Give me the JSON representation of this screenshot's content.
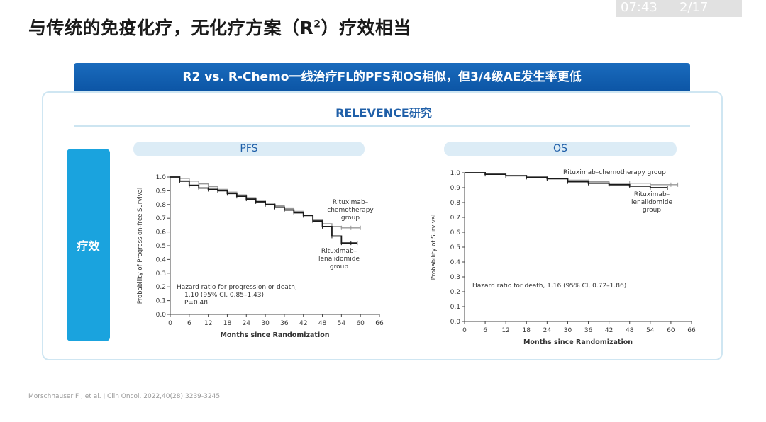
{
  "slide": {
    "title_main": "与传统的免疫化疗，无化疗方案（R",
    "title_sup": "2",
    "title_end": "）疗效相当"
  },
  "overlay": {
    "time": "07:43",
    "page": "2/17"
  },
  "banner": {
    "text": "R2 vs. R-Chemo一线治疗FL的PFS和OS相似，但3/4级AE发生率更低"
  },
  "study": {
    "name": "RELEVENCE研究"
  },
  "side": {
    "label": "疗效"
  },
  "colors": {
    "banner": "#1264b5",
    "side": "#1aa3de",
    "pill": "#dcecf6",
    "accent_text": "#1f5fa8"
  },
  "footnote": "Morschhauser F , et al. J Clin Oncol. 2022,40(28):3239-3245",
  "chart_data": [
    {
      "type": "line",
      "panel_label": "PFS",
      "ylabel": "Probability of Progression-free Survival",
      "xlabel": "Months since Randomization",
      "xlim": [
        0,
        66
      ],
      "ylim": [
        0.0,
        1.0
      ],
      "x_ticks": [
        "0",
        "6",
        "12",
        "18",
        "24",
        "30",
        "36",
        "42",
        "48",
        "54",
        "60",
        "66"
      ],
      "y_ticks": [
        "0.0",
        "0.1",
        "0.2",
        "0.3",
        "0.4",
        "0.5",
        "0.6",
        "0.7",
        "0.8",
        "0.9",
        "1.0"
      ],
      "series": [
        {
          "name": "Rituximab–chemotherapy group",
          "label_lines": [
            "Rituximab–",
            "chemotherapy",
            "group"
          ],
          "x": [
            0,
            3,
            6,
            9,
            12,
            15,
            18,
            21,
            24,
            27,
            30,
            33,
            36,
            39,
            42,
            45,
            48,
            51,
            54,
            57,
            60
          ],
          "y": [
            1.0,
            0.99,
            0.97,
            0.95,
            0.93,
            0.91,
            0.89,
            0.87,
            0.85,
            0.83,
            0.81,
            0.79,
            0.77,
            0.75,
            0.72,
            0.69,
            0.66,
            0.64,
            0.63,
            0.63,
            0.63
          ]
        },
        {
          "name": "Rituximab–lenalidomide group",
          "label_lines": [
            "Rituximab–",
            "lenalidomide",
            "group"
          ],
          "x": [
            0,
            3,
            6,
            9,
            12,
            15,
            18,
            21,
            24,
            27,
            30,
            33,
            36,
            39,
            42,
            45,
            48,
            51,
            54,
            57,
            59
          ],
          "y": [
            1.0,
            0.97,
            0.94,
            0.92,
            0.91,
            0.9,
            0.88,
            0.86,
            0.84,
            0.82,
            0.8,
            0.78,
            0.76,
            0.74,
            0.72,
            0.68,
            0.64,
            0.57,
            0.52,
            0.52,
            0.52
          ]
        }
      ],
      "annotation": [
        "Hazard ratio for progression or death,",
        "1.10 (95% CI, 0.85–1.43)",
        "P=0.48"
      ]
    },
    {
      "type": "line",
      "panel_label": "OS",
      "ylabel": "Probability of Survival",
      "xlabel": "Months since Randomization",
      "xlim": [
        0,
        66
      ],
      "ylim": [
        0.0,
        1.0
      ],
      "x_ticks": [
        "0",
        "6",
        "12",
        "18",
        "24",
        "30",
        "36",
        "42",
        "48",
        "54",
        "60",
        "66"
      ],
      "y_ticks": [
        "0.0",
        "0.1",
        "0.2",
        "0.3",
        "0.4",
        "0.5",
        "0.6",
        "0.7",
        "0.8",
        "0.9",
        "1.0"
      ],
      "series": [
        {
          "name": "Rituximab–chemotherapy group",
          "label_lines": [
            "Rituximab–chemotherapy group"
          ],
          "x": [
            0,
            6,
            12,
            18,
            24,
            30,
            36,
            42,
            48,
            54,
            60,
            62
          ],
          "y": [
            1.0,
            0.99,
            0.98,
            0.97,
            0.96,
            0.95,
            0.94,
            0.93,
            0.93,
            0.92,
            0.92,
            0.92
          ]
        },
        {
          "name": "Rituximab–lenalidomide group",
          "label_lines": [
            "Rituximab–",
            "lenalidomide",
            "group"
          ],
          "x": [
            0,
            6,
            12,
            18,
            24,
            30,
            36,
            42,
            48,
            54,
            59
          ],
          "y": [
            1.0,
            0.99,
            0.98,
            0.97,
            0.96,
            0.94,
            0.93,
            0.92,
            0.91,
            0.9,
            0.9
          ]
        }
      ],
      "annotation": [
        "Hazard ratio for death, 1.16 (95% CI, 0.72–1.86)"
      ]
    }
  ]
}
